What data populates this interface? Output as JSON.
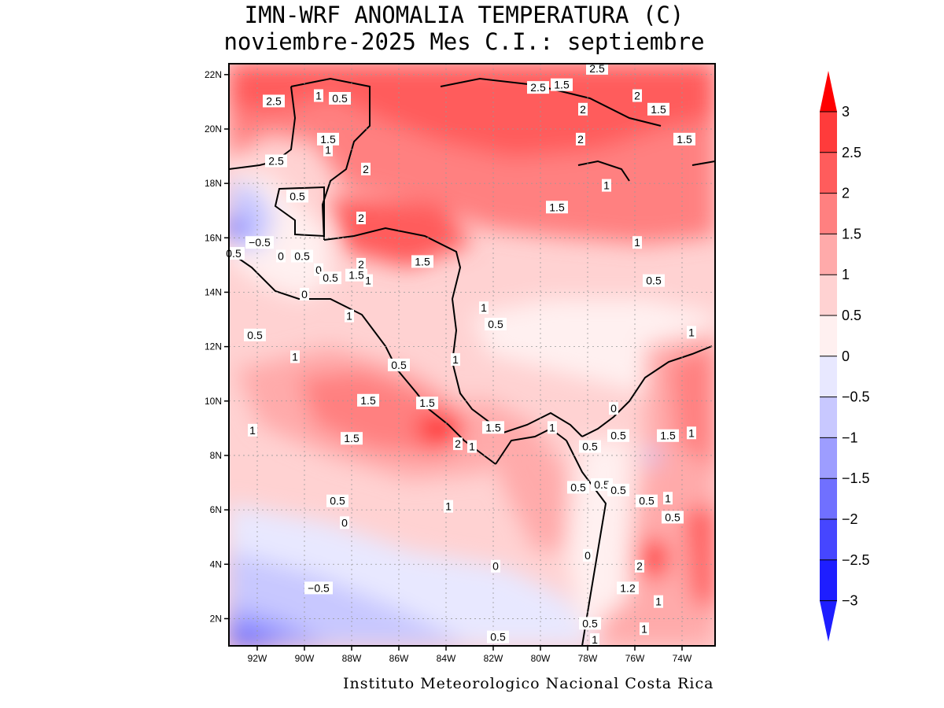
{
  "title_line1": "IMN-WRF  ANOMALIA TEMPERATURA (C)",
  "title_line2": "noviembre-2025 Mes C.I.: septiembre",
  "footer": "Instituto Meteorologico Nacional Costa Rica",
  "lat_ticks": [
    "22N",
    "20N",
    "18N",
    "16N",
    "14N",
    "12N",
    "10N",
    "8N",
    "6N",
    "4N",
    "2N"
  ],
  "lon_ticks": [
    "92W",
    "90W",
    "88W",
    "86W",
    "84W",
    "82W",
    "80W",
    "78W",
    "76W",
    "74W"
  ],
  "colorbar": {
    "labels": [
      "3",
      "2.5",
      "2",
      "1.5",
      "1",
      "0.5",
      "0",
      "−0.5",
      "−1",
      "−1.5",
      "−2",
      "−2.5",
      "−3"
    ],
    "colors": [
      "#ff0000",
      "#ff3b3b",
      "#ff5c5c",
      "#ff8080",
      "#ffaaaa",
      "#ffd2d2",
      "#fff0f0",
      "#e8e8ff",
      "#c8c8ff",
      "#9d9dff",
      "#7070ff",
      "#4646ff",
      "#1e1eff"
    ]
  },
  "contour_labels": [
    {
      "text": "2.5",
      "lon": -91.3,
      "lat": 21.0
    },
    {
      "text": "1",
      "lon": -89.4,
      "lat": 21.2
    },
    {
      "text": "0.5",
      "lon": -88.5,
      "lat": 21.1
    },
    {
      "text": "2.5",
      "lon": -80.1,
      "lat": 21.5
    },
    {
      "text": "1.5",
      "lon": -79.1,
      "lat": 21.6
    },
    {
      "text": "2.5",
      "lon": -77.6,
      "lat": 22.2
    },
    {
      "text": "2",
      "lon": -78.2,
      "lat": 20.7
    },
    {
      "text": "2",
      "lon": -75.9,
      "lat": 21.2
    },
    {
      "text": "1.5",
      "lon": -75.0,
      "lat": 20.7
    },
    {
      "text": "1.5",
      "lon": -89.0,
      "lat": 19.6
    },
    {
      "text": "1",
      "lon": -89.0,
      "lat": 19.2
    },
    {
      "text": "2.5",
      "lon": -91.2,
      "lat": 18.8
    },
    {
      "text": "2",
      "lon": -87.4,
      "lat": 18.5
    },
    {
      "text": "2",
      "lon": -78.3,
      "lat": 19.6
    },
    {
      "text": "1.5",
      "lon": -73.9,
      "lat": 19.6
    },
    {
      "text": "1",
      "lon": -77.2,
      "lat": 17.9
    },
    {
      "text": "0.5",
      "lon": -90.3,
      "lat": 17.5
    },
    {
      "text": "1.5",
      "lon": -79.3,
      "lat": 17.1
    },
    {
      "text": "2",
      "lon": -87.6,
      "lat": 16.7
    },
    {
      "text": "1",
      "lon": -75.9,
      "lat": 15.8
    },
    {
      "text": "−0.5",
      "lon": -91.9,
      "lat": 15.8
    },
    {
      "text": "0.5",
      "lon": -93.0,
      "lat": 15.4
    },
    {
      "text": "0.5",
      "lon": -90.1,
      "lat": 15.3
    },
    {
      "text": "0",
      "lon": -91.0,
      "lat": 15.3
    },
    {
      "text": "2",
      "lon": -87.6,
      "lat": 15.0
    },
    {
      "text": "1.5",
      "lon": -85.0,
      "lat": 15.1
    },
    {
      "text": "1.5",
      "lon": -87.8,
      "lat": 14.6
    },
    {
      "text": "1",
      "lon": -87.3,
      "lat": 14.4
    },
    {
      "text": "0",
      "lon": -89.4,
      "lat": 14.8
    },
    {
      "text": "0.5",
      "lon": -88.9,
      "lat": 14.5
    },
    {
      "text": "0.5",
      "lon": -75.2,
      "lat": 14.4
    },
    {
      "text": "0",
      "lon": -90.0,
      "lat": 13.9
    },
    {
      "text": "1",
      "lon": -82.4,
      "lat": 13.4
    },
    {
      "text": "0.5",
      "lon": -81.9,
      "lat": 12.8
    },
    {
      "text": "1",
      "lon": -88.1,
      "lat": 13.1
    },
    {
      "text": "0.5",
      "lon": -92.1,
      "lat": 12.4
    },
    {
      "text": "1",
      "lon": -73.6,
      "lat": 12.5
    },
    {
      "text": "1",
      "lon": -90.4,
      "lat": 11.6
    },
    {
      "text": "0.5",
      "lon": -86.0,
      "lat": 11.3
    },
    {
      "text": "1",
      "lon": -83.6,
      "lat": 11.5
    },
    {
      "text": "1.5",
      "lon": -87.3,
      "lat": 10.0
    },
    {
      "text": "1.5",
      "lon": -84.8,
      "lat": 9.9
    },
    {
      "text": "0",
      "lon": -76.9,
      "lat": 9.7
    },
    {
      "text": "1",
      "lon": -92.2,
      "lat": 8.9
    },
    {
      "text": "1.5",
      "lon": -88.0,
      "lat": 8.6
    },
    {
      "text": "1.5",
      "lon": -82.0,
      "lat": 9.0
    },
    {
      "text": "1",
      "lon": -79.5,
      "lat": 9.0
    },
    {
      "text": "2",
      "lon": -83.5,
      "lat": 8.4
    },
    {
      "text": "1",
      "lon": -82.9,
      "lat": 8.3
    },
    {
      "text": "0.5",
      "lon": -76.7,
      "lat": 8.7
    },
    {
      "text": "1.5",
      "lon": -74.6,
      "lat": 8.7
    },
    {
      "text": "1",
      "lon": -73.6,
      "lat": 8.8
    },
    {
      "text": "0.5",
      "lon": -77.9,
      "lat": 8.3
    },
    {
      "text": "0.5",
      "lon": -77.4,
      "lat": 6.9
    },
    {
      "text": "0.5",
      "lon": -78.4,
      "lat": 6.8
    },
    {
      "text": "0.5",
      "lon": -76.7,
      "lat": 6.7
    },
    {
      "text": "0.5",
      "lon": -75.5,
      "lat": 6.3
    },
    {
      "text": "1",
      "lon": -74.6,
      "lat": 6.4
    },
    {
      "text": "0.5",
      "lon": -74.4,
      "lat": 5.7
    },
    {
      "text": "0.5",
      "lon": -88.6,
      "lat": 6.3
    },
    {
      "text": "1",
      "lon": -83.9,
      "lat": 6.1
    },
    {
      "text": "0",
      "lon": -88.3,
      "lat": 5.5
    },
    {
      "text": "0",
      "lon": -81.9,
      "lat": 3.9
    },
    {
      "text": "0",
      "lon": -78.0,
      "lat": 4.3
    },
    {
      "text": "2",
      "lon": -75.8,
      "lat": 3.9
    },
    {
      "text": "1.2",
      "lon": -76.3,
      "lat": 3.1
    },
    {
      "text": "1",
      "lon": -75.0,
      "lat": 2.6
    },
    {
      "text": "−0.5",
      "lon": -89.4,
      "lat": 3.1
    },
    {
      "text": "0.5",
      "lon": -77.9,
      "lat": 1.8
    },
    {
      "text": "1",
      "lon": -75.6,
      "lat": 1.6
    },
    {
      "text": "0.5",
      "lon": -81.8,
      "lat": 1.3
    },
    {
      "text": "1",
      "lon": -77.7,
      "lat": 1.2
    }
  ]
}
